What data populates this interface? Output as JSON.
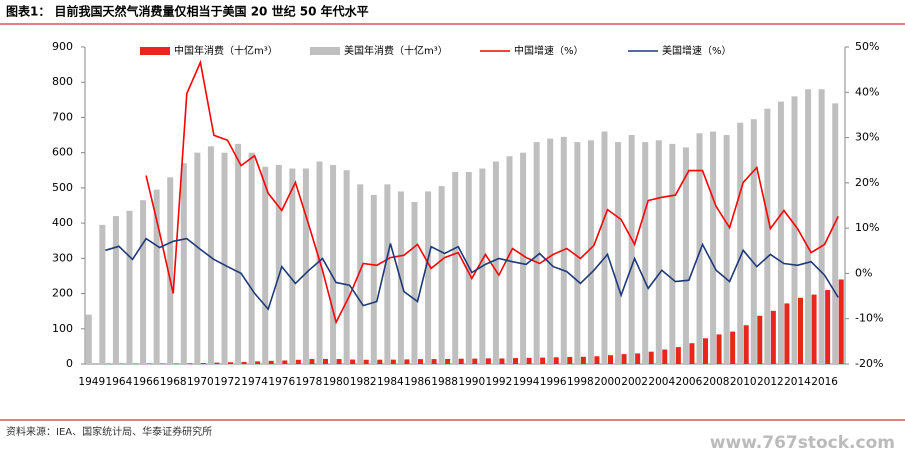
{
  "chart_data": {
    "type": "bar",
    "title": "图表1：  目前我国天然气消费量仅相当于美国 20 世纪 50 年代水平",
    "source": "资料来源：IEA、国家统计局、华泰证券研究所",
    "watermark": "www.767stock.com",
    "categories": [
      "1949",
      null,
      "1964",
      null,
      "1966",
      null,
      "1968",
      null,
      "1970",
      null,
      "1972",
      null,
      "1974",
      null,
      "1976",
      null,
      "1978",
      null,
      "1980",
      null,
      "1982",
      null,
      "1984",
      null,
      "1986",
      null,
      "1988",
      null,
      "1990",
      null,
      "1992",
      null,
      "1994",
      null,
      "1996",
      null,
      "1998",
      null,
      "2000",
      null,
      "2002",
      null,
      "2004",
      null,
      "2006",
      null,
      "2008",
      null,
      "2010",
      null,
      "2012",
      null,
      "2014",
      null,
      "2016",
      null
    ],
    "ylim": [
      0,
      900
    ],
    "yticks": [
      0,
      100,
      200,
      300,
      400,
      500,
      600,
      700,
      800,
      900
    ],
    "y2lim": [
      -20,
      50
    ],
    "y2ticks": [
      {
        "value": -20,
        "label": "-20%"
      },
      {
        "value": -10,
        "label": "-10%"
      },
      {
        "value": 0,
        "label": "0%"
      },
      {
        "value": 10,
        "label": "10%"
      },
      {
        "value": 20,
        "label": "20%"
      },
      {
        "value": 30,
        "label": "30%"
      },
      {
        "value": 40,
        "label": "40%"
      },
      {
        "value": 50,
        "label": "50%"
      }
    ],
    "series": [
      {
        "name": "中国年消费（十亿m³）",
        "type": "bar",
        "color": "#e8261b",
        "values": [
          0.2,
          1,
          1,
          1,
          1.5,
          1.5,
          1.5,
          2,
          3,
          4,
          5,
          6,
          7.5,
          9,
          10,
          12,
          14,
          14.5,
          14,
          12.7,
          12,
          12.2,
          12.4,
          13,
          13.8,
          14,
          14.2,
          15,
          15.3,
          16,
          15.7,
          16.8,
          17.5,
          18,
          19,
          20,
          20.5,
          22,
          25,
          28,
          30,
          35,
          41,
          48,
          59,
          73,
          84,
          92,
          110,
          137,
          151,
          172,
          188,
          197,
          210,
          240
        ]
      },
      {
        "name": "美国年消费（十亿m³）",
        "type": "bar",
        "color": "#bfbfbf",
        "values": [
          140,
          395,
          420,
          435,
          465,
          495,
          530,
          570,
          600,
          618,
          600,
          625,
          600,
          560,
          565,
          555,
          555,
          575,
          565,
          550,
          510,
          480,
          510,
          490,
          460,
          490,
          505,
          545,
          545,
          555,
          575,
          590,
          600,
          630,
          640,
          645,
          630,
          635,
          660,
          630,
          650,
          630,
          635,
          625,
          615,
          655,
          660,
          650,
          685,
          695,
          725,
          745,
          760,
          780,
          780,
          740
        ]
      },
      {
        "name": "中国增速（%）",
        "type": "line",
        "axis": "y2",
        "color": "#ff0000",
        "values": [
          null,
          null,
          null,
          null,
          21.6,
          9,
          -4.4,
          39.7,
          46.6,
          30.5,
          29.4,
          23.8,
          26,
          17.7,
          13.9,
          20.1,
          10.6,
          0.7,
          -10.8,
          -4.9,
          2.2,
          1.8,
          3.5,
          4.0,
          6.4,
          1.1,
          3.5,
          4.6,
          -1.1,
          4.2,
          -0.4,
          5.5,
          3.5,
          2.2,
          4.2,
          5.5,
          3.3,
          6.2,
          14.1,
          11.9,
          6.4,
          16.1,
          16.8,
          17.3,
          22.7,
          22.7,
          14.8,
          10.1,
          20.1,
          23.4,
          9.9,
          13.9,
          9.9,
          4.6,
          6.4,
          12.6
        ]
      },
      {
        "name": "美国增速（%）",
        "type": "line",
        "axis": "y2",
        "color": "#1f3a7a",
        "values": [
          null,
          5.1,
          6.0,
          3.1,
          7.7,
          5.7,
          7.1,
          7.7,
          5.3,
          3.1,
          1.5,
          0,
          -4.4,
          -7.9,
          1.5,
          -2.2,
          0.7,
          3.3,
          -2.0,
          -2.6,
          -7.1,
          -6.2,
          6.6,
          -4.0,
          -6.2,
          5.9,
          4.4,
          5.9,
          0.2,
          2.0,
          3.3,
          2.6,
          2.0,
          4.4,
          1.5,
          0.4,
          -2.2,
          0.7,
          4.2,
          -4.8,
          3.3,
          -3.3,
          0.7,
          -1.8,
          -1.5,
          6.4,
          0.7,
          -1.8,
          5.1,
          1.5,
          4.2,
          2.2,
          1.8,
          2.6,
          -0.4,
          -5.3
        ]
      }
    ]
  }
}
